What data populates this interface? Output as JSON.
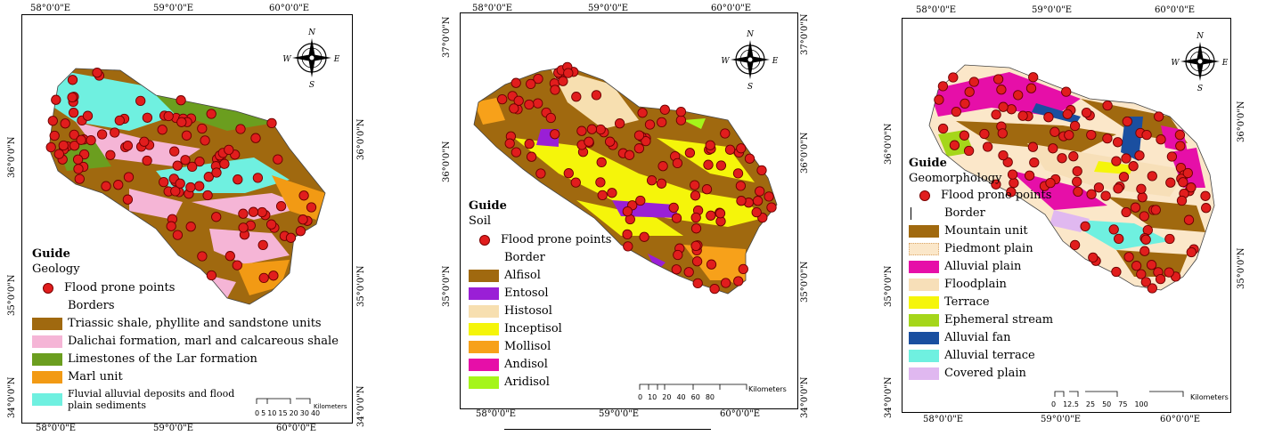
{
  "panels": [
    {
      "id": "geology",
      "top_coords": [
        "58°0'0\"E",
        "59°0'0\"E",
        "60°0'0\"E"
      ],
      "bottom_coords": [
        "58°0'0\"E",
        "59°0'0\"E",
        "60°0'0\"E"
      ],
      "left_coords": [
        "36°0'0\"N",
        "35°0'0\"N",
        "34°0'0\"N"
      ],
      "right_coords": [
        "36°0'0\"N",
        "35°0'0\"N",
        "34°0'0\"N"
      ],
      "legend_title": "Guide",
      "legend_subtitle": "Geology",
      "points_label": "Flood prone points",
      "border_label": "Borders",
      "classes": [
        {
          "label": "Triassic shale, phyllite and sandstone units",
          "color": "#a0690f"
        },
        {
          "label": "Dalichai formation, marl and calcareous shale",
          "color": "#f5b5d6"
        },
        {
          "label": "Limestones of the Lar formation",
          "color": "#6b9e1f"
        },
        {
          "label": "Marl unit",
          "color": "#f29a14"
        },
        {
          "label": "Fluvial alluvial deposits and flood plain sediments",
          "color": "#6ff0e0"
        }
      ],
      "scale_ticks": [
        "0",
        "5",
        "10",
        "15",
        "20",
        "30",
        "40"
      ],
      "scale_unit": "Kilometers"
    },
    {
      "id": "soil",
      "top_coords": [
        "58°0'0\"E",
        "59°0'0\"E",
        "60°0'0\"E"
      ],
      "bottom_coords": [
        "58°0'0\"E",
        "59°0'0\"E",
        "60°0'0\"E"
      ],
      "left_coords": [
        "37°0'0\"N",
        "36°0'0\"N",
        "35°0'0\"N"
      ],
      "right_coords": [
        "37°0'0\"N",
        "36°0'0\"N",
        "35°0'0\"N",
        "34°0'0\"N"
      ],
      "legend_title": "Guide",
      "legend_subtitle": "Soil",
      "points_label": "Flood prone points",
      "border_label": "Border",
      "classes": [
        {
          "label": "Alfisol",
          "color": "#a0690f"
        },
        {
          "label": "Entosol",
          "color": "#9a1fd6"
        },
        {
          "label": "Histosol",
          "color": "#f7dfb0"
        },
        {
          "label": "Inceptisol",
          "color": "#f5f50a"
        },
        {
          "label": "Mollisol",
          "color": "#f7a11a"
        },
        {
          "label": "Andisol",
          "color": "#e60fa8"
        },
        {
          "label": "Aridisol",
          "color": "#a5f51a"
        }
      ],
      "scale_ticks": [
        "0",
        "10",
        "20",
        "40",
        "60",
        "80"
      ],
      "scale_unit": "Kilometers"
    },
    {
      "id": "geomorphology",
      "top_coords": [
        "58°0'0\"E",
        "59°0'0\"E",
        "60°0'0\"E"
      ],
      "bottom_coords": [
        "58°0'0\"E",
        "59°0'0\"E",
        "60°0'0\"E"
      ],
      "left_coords": [
        "36°0'0\"N",
        "35°0'0\"N",
        "34°0'0\"N"
      ],
      "right_coords": [
        "36°0'0\"N",
        "35°0'0\"N"
      ],
      "legend_title": "Guide",
      "legend_subtitle": "Geomorphology",
      "points_label": "Flood prone points",
      "border_label": "Border",
      "classes": [
        {
          "label": "Mountain unit",
          "color": "#a0690f"
        },
        {
          "label": "Piedmont plain",
          "color": "#fbe7c9"
        },
        {
          "label": "Alluvial plain",
          "color": "#e60fa8"
        },
        {
          "label": "Floodplain",
          "color": "#f7dfb8"
        },
        {
          "label": "Terrace",
          "color": "#f5f50a"
        },
        {
          "label": "Ephemeral stream",
          "color": "#a5d61a"
        },
        {
          "label": "Alluvial fan",
          "color": "#1a4fa0"
        },
        {
          "label": "Alluvial terrace",
          "color": "#6ff0e0"
        },
        {
          "label": "Covered plain",
          "color": "#e0b8f0"
        }
      ],
      "scale_ticks": [
        "0",
        "12.5",
        "25",
        "50",
        "75",
        "100"
      ],
      "scale_unit": "Kilometers"
    }
  ],
  "point_color": "#e11d1d"
}
